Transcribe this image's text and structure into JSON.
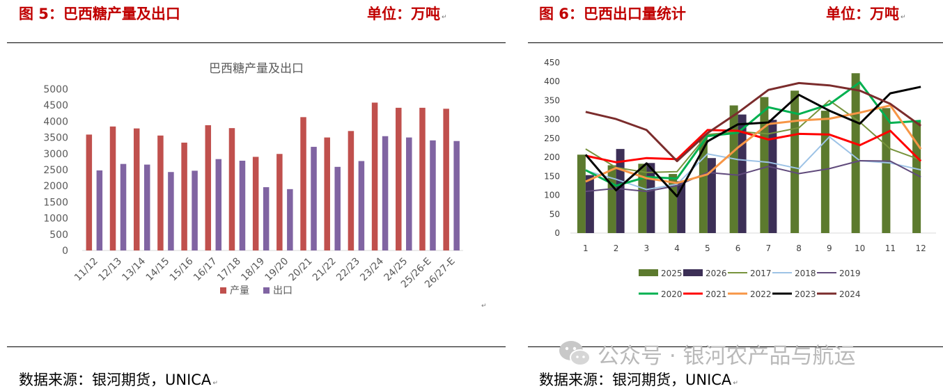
{
  "left": {
    "figure_title": "图 5：巴西糖产量及出口",
    "unit": "单位：万吨",
    "source": "数据来源：银河期货，UNICA"
  },
  "right": {
    "figure_title": "图 6：巴西出口量统计",
    "unit": "单位：万吨",
    "source": "数据来源：银河期货，UNICA"
  },
  "watermark": "公众号 · 银河农产品与航运",
  "chart_data": [
    {
      "type": "bar",
      "title": "巴西糖产量及出口",
      "categories": [
        "11/12",
        "12/13",
        "13/14",
        "14/15",
        "15/16",
        "16/17",
        "17/18",
        "18/19",
        "19/20",
        "20/21",
        "21/22",
        "22/23",
        "23/24",
        "24/25",
        "25/26-E",
        "26/27-E"
      ],
      "series": [
        {
          "name": "产量",
          "color": "#c0504d",
          "values": [
            3590,
            3840,
            3780,
            3560,
            3340,
            3880,
            3790,
            2900,
            2990,
            4130,
            3500,
            3700,
            4580,
            4420,
            4420,
            4390
          ]
        },
        {
          "name": "出口",
          "color": "#8064a2",
          "values": [
            2480,
            2680,
            2660,
            2430,
            2470,
            2830,
            2780,
            1960,
            1900,
            3210,
            2590,
            2770,
            3540,
            3500,
            3410,
            3390
          ]
        }
      ],
      "ylim": [
        0,
        5000
      ],
      "yticks": [
        0,
        500,
        1000,
        1500,
        2000,
        2500,
        3000,
        3500,
        4000,
        4500,
        5000
      ],
      "legend": "bottom",
      "grid": false
    },
    {
      "type": "bar+line",
      "categories": [
        "1",
        "2",
        "3",
        "4",
        "5",
        "6",
        "7",
        "8",
        "9",
        "10",
        "11",
        "12"
      ],
      "bar_series": [
        {
          "name": "2025",
          "color": "#5c7a2e",
          "values": [
            207,
            179,
            183,
            156,
            255,
            337,
            359,
            376,
            323,
            422,
            330,
            296
          ]
        },
        {
          "name": "2026",
          "color": "#3c2f56",
          "values": [
            153,
            222,
            185,
            137,
            198,
            313,
            299
          ]
        }
      ],
      "line_series": [
        {
          "name": "2017",
          "color": "#77933c",
          "values": [
            222,
            173,
            160,
            162,
            260,
            268,
            262,
            278,
            350,
            293,
            222,
            193
          ]
        },
        {
          "name": "2018",
          "color": "#9dc3e6",
          "values": [
            165,
            142,
            115,
            129,
            209,
            194,
            187,
            170,
            254,
            191,
            185,
            167
          ]
        },
        {
          "name": "2019",
          "color": "#604a7b",
          "values": [
            110,
            118,
            110,
            125,
            160,
            153,
            176,
            157,
            170,
            191,
            190,
            148
          ]
        },
        {
          "name": "2020",
          "color": "#00b050",
          "values": [
            166,
            125,
            148,
            144,
            256,
            265,
            332,
            314,
            340,
            398,
            291,
            296
          ]
        },
        {
          "name": "2021",
          "color": "#ff0000",
          "values": [
            204,
            187,
            198,
            195,
            272,
            270,
            247,
            262,
            260,
            232,
            270,
            190
          ]
        },
        {
          "name": "2022",
          "color": "#f79646",
          "values": [
            136,
            172,
            145,
            132,
            155,
            226,
            288,
            297,
            302,
            318,
            337,
            222
          ]
        },
        {
          "name": "2023",
          "color": "#000000",
          "values": [
            207,
            113,
            184,
            97,
            242,
            287,
            292,
            365,
            323,
            289,
            369,
            386
          ]
        },
        {
          "name": "2024",
          "color": "#7b2c2c",
          "values": [
            320,
            301,
            272,
            190,
            264,
            318,
            378,
            396,
            390,
            376,
            341,
            283
          ]
        }
      ],
      "ylim": [
        0,
        450
      ],
      "yticks": [
        0,
        50,
        100,
        150,
        200,
        250,
        300,
        350,
        400,
        450
      ],
      "legend": "bottom",
      "grid": false
    }
  ]
}
